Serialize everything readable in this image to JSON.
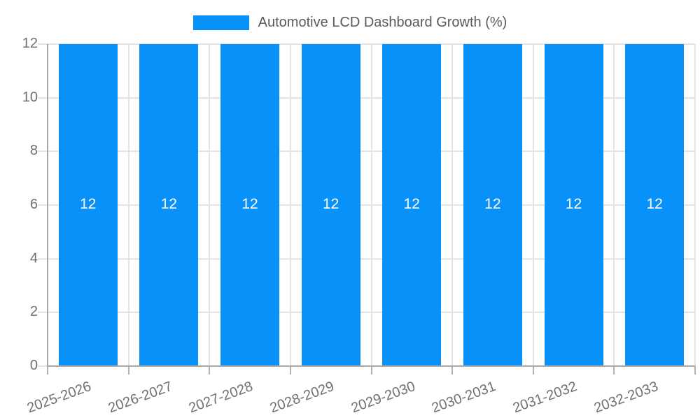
{
  "legend": {
    "label": "Automotive LCD Dashboard Growth (%)"
  },
  "chart_data": {
    "type": "bar",
    "title": "Automotive LCD Dashboard Growth (%)",
    "series_name": "Automotive LCD Dashboard Growth (%)",
    "categories": [
      "2025-2026",
      "2026-2027",
      "2027-2028",
      "2028-2029",
      "2029-2030",
      "2030-2031",
      "2031-2032",
      "2032-2033"
    ],
    "values": [
      12,
      12,
      12,
      12,
      12,
      12,
      12,
      12
    ],
    "bar_value_labels": [
      "12",
      "12",
      "12",
      "12",
      "12",
      "12",
      "12",
      "12"
    ],
    "xlabel": "",
    "ylabel": "",
    "ylim": [
      0,
      12
    ],
    "yticks": [
      0,
      2,
      4,
      6,
      8,
      10,
      12
    ],
    "grid": true,
    "legend_position": "top-center",
    "xtick_rotation_deg": -20,
    "colors": {
      "bar": "#0991fa",
      "bar_label": "#ffffff",
      "gridline": "#e4e4e4",
      "axis": "#a8a8a8",
      "tick": "#b2b2b2",
      "tick_label": "#707070",
      "legend_text": "#5a5a5a",
      "background": "#ffffff"
    }
  }
}
